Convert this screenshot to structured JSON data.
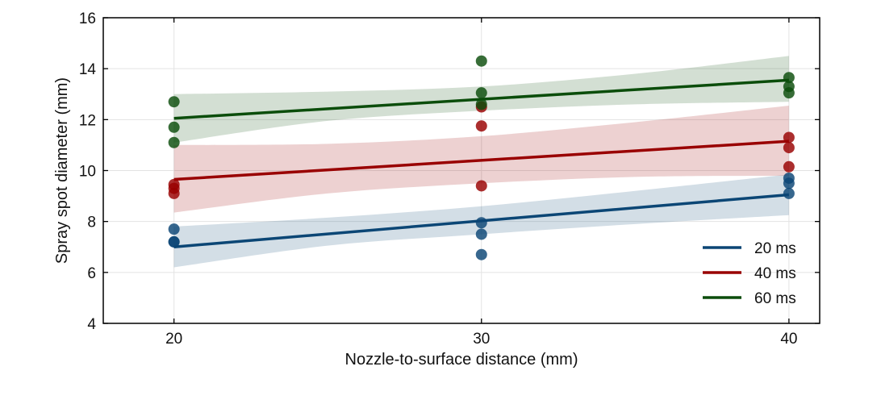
{
  "chart_data": {
    "type": "scatter",
    "title": "",
    "xlabel": "Nozzle-to-surface distance (mm)",
    "ylabel": "Spray spot diameter (mm)",
    "xlim": [
      17.7,
      41.0
    ],
    "ylim": [
      4,
      16
    ],
    "xticks": [
      20,
      30,
      40
    ],
    "yticks": [
      4,
      6,
      8,
      10,
      12,
      14,
      16
    ],
    "grid": true,
    "legend_position": "bottom-right",
    "series": [
      {
        "name": "20 ms",
        "color": "#0b4675",
        "points": [
          [
            20,
            7.7
          ],
          [
            20,
            7.2
          ],
          [
            20,
            7.2
          ],
          [
            30,
            7.95
          ],
          [
            30,
            7.5
          ],
          [
            30,
            6.7
          ],
          [
            40,
            9.7
          ],
          [
            40,
            9.5
          ],
          [
            40,
            9.1
          ]
        ],
        "fit": [
          [
            20,
            7.0
          ],
          [
            40,
            9.05
          ]
        ],
        "band_upper": [
          [
            20,
            7.8
          ],
          [
            25,
            8.15
          ],
          [
            30,
            8.6
          ],
          [
            35,
            9.2
          ],
          [
            40,
            9.85
          ]
        ],
        "band_lower": [
          [
            20,
            6.2
          ],
          [
            25,
            7.05
          ],
          [
            30,
            7.5
          ],
          [
            35,
            7.9
          ],
          [
            40,
            8.25
          ]
        ]
      },
      {
        "name": "40 ms",
        "color": "#990000",
        "points": [
          [
            20,
            9.45
          ],
          [
            20,
            9.3
          ],
          [
            20,
            9.1
          ],
          [
            30,
            12.5
          ],
          [
            30,
            11.75
          ],
          [
            30,
            9.4
          ],
          [
            40,
            11.3
          ],
          [
            40,
            10.9
          ],
          [
            40,
            10.15
          ]
        ],
        "fit": [
          [
            20,
            9.65
          ],
          [
            40,
            11.15
          ]
        ],
        "band_upper": [
          [
            20,
            11.0
          ],
          [
            25,
            11.05
          ],
          [
            30,
            11.35
          ],
          [
            35,
            11.9
          ],
          [
            40,
            12.55
          ]
        ],
        "band_lower": [
          [
            20,
            8.35
          ],
          [
            25,
            9.1
          ],
          [
            30,
            9.5
          ],
          [
            35,
            9.75
          ],
          [
            40,
            9.8
          ]
        ]
      },
      {
        "name": "60 ms",
        "color": "#0b4d0b",
        "points": [
          [
            20,
            12.7
          ],
          [
            20,
            11.7
          ],
          [
            20,
            11.1
          ],
          [
            30,
            14.3
          ],
          [
            30,
            13.05
          ],
          [
            30,
            12.6
          ],
          [
            40,
            13.65
          ],
          [
            40,
            13.3
          ],
          [
            40,
            13.05
          ]
        ],
        "fit": [
          [
            20,
            12.05
          ],
          [
            40,
            13.55
          ]
        ],
        "band_upper": [
          [
            20,
            13.0
          ],
          [
            25,
            13.1
          ],
          [
            30,
            13.3
          ],
          [
            35,
            13.8
          ],
          [
            40,
            14.5
          ]
        ],
        "band_lower": [
          [
            20,
            11.1
          ],
          [
            25,
            11.95
          ],
          [
            30,
            12.35
          ],
          [
            35,
            12.6
          ],
          [
            40,
            12.7
          ]
        ]
      }
    ]
  }
}
